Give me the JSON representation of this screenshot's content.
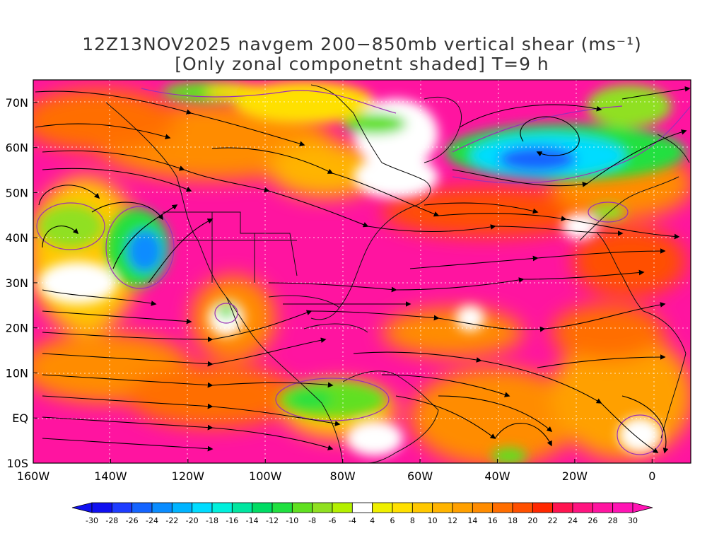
{
  "title": {
    "line1": "12Z13NOV2025 navgem 200−850mb vertical shear (ms⁻¹)",
    "line2": "[Only zonal componetnt shaded] T=9 h"
  },
  "axes": {
    "lat_labels": [
      "70N",
      "60N",
      "50N",
      "40N",
      "30N",
      "20N",
      "10N",
      "EQ",
      "10S"
    ],
    "lat_values": [
      70,
      60,
      50,
      40,
      30,
      20,
      10,
      0,
      -10
    ],
    "lon_labels": [
      "160W",
      "140W",
      "120W",
      "100W",
      "80W",
      "60W",
      "40W",
      "20W",
      "0"
    ],
    "lon_values": [
      -160,
      -140,
      -120,
      -100,
      -80,
      -60,
      -40,
      -20,
      0
    ],
    "lon_range": [
      -160,
      10
    ],
    "lat_range": [
      -10,
      75
    ],
    "grid": "dotted"
  },
  "colorbar": {
    "labels": [
      "-30",
      "-28",
      "-26",
      "-24",
      "-22",
      "-20",
      "-18",
      "-16",
      "-14",
      "-12",
      "-10",
      "-8",
      "-6",
      "-4",
      "4",
      "6",
      "8",
      "10",
      "12",
      "14",
      "16",
      "18",
      "20",
      "22",
      "24",
      "26",
      "28",
      "30"
    ],
    "colors": [
      "#1010f0",
      "#1e3cff",
      "#1464ff",
      "#0a8cff",
      "#00b4ff",
      "#00dcff",
      "#00f0dc",
      "#00e6a0",
      "#00dc64",
      "#20e040",
      "#60e020",
      "#90e020",
      "#b4f000",
      "#ffffff",
      "#f0f000",
      "#ffe000",
      "#ffc800",
      "#ffb400",
      "#ffa000",
      "#ff8c00",
      "#ff6e00",
      "#ff5000",
      "#ff2800",
      "#ff1450",
      "#ff1480",
      "#ff14a0",
      "#ff14b4"
    ]
  }
}
